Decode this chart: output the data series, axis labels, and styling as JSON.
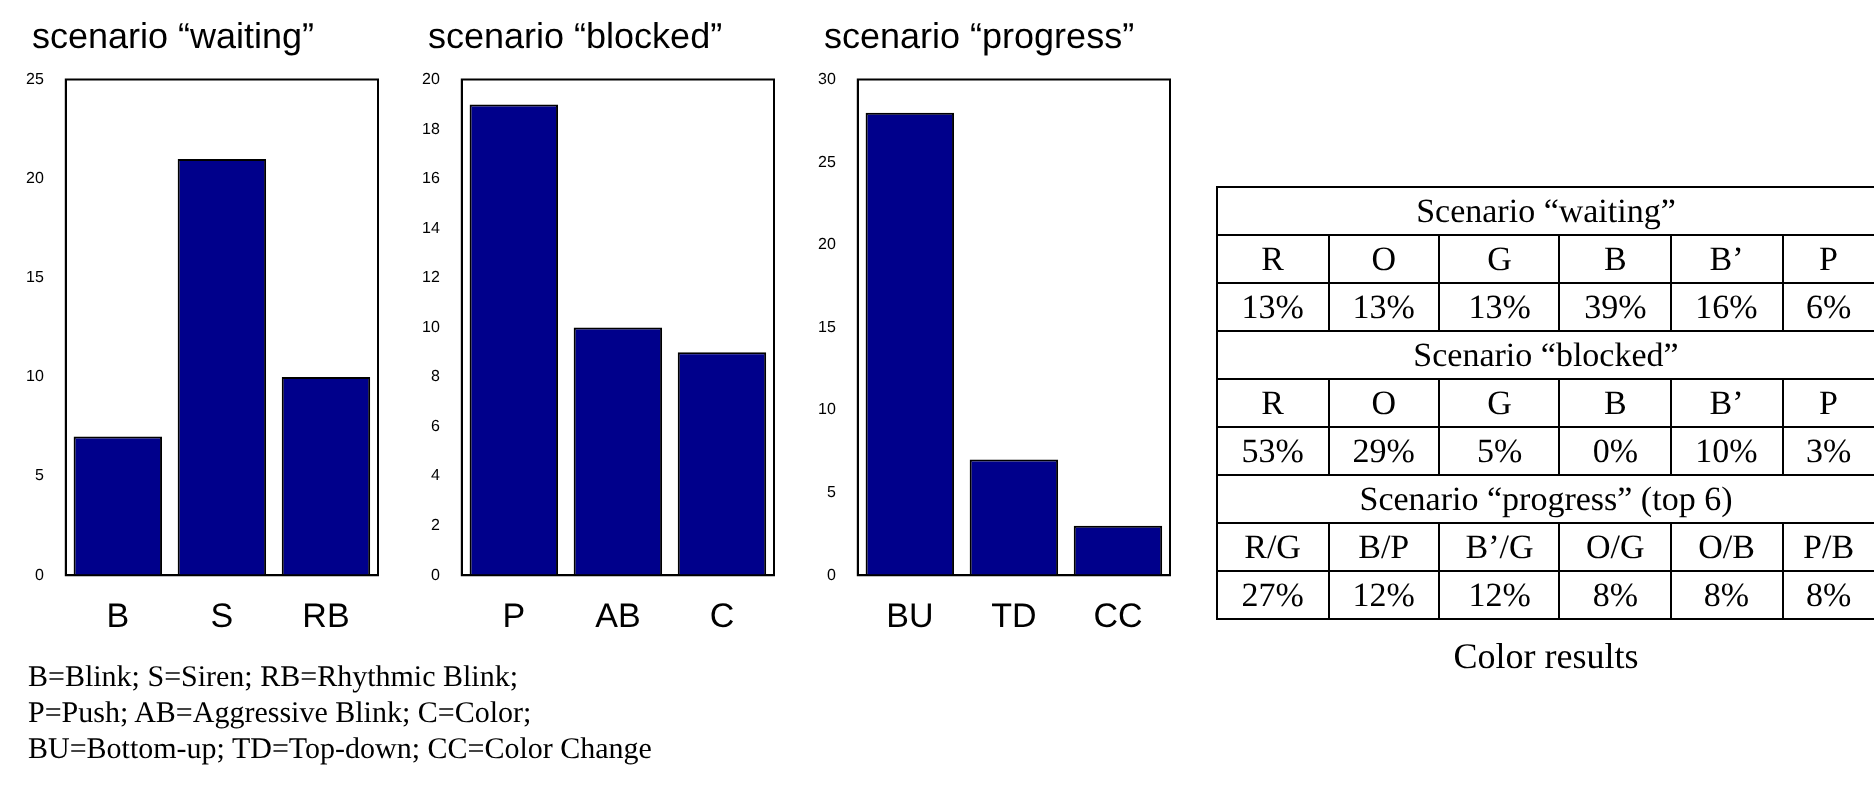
{
  "chart_data": [
    {
      "type": "bar",
      "title": "scenario “waiting”",
      "categories": [
        "B",
        "S",
        "RB"
      ],
      "values": [
        7,
        21,
        10
      ],
      "color": "#00008b",
      "ylim": [
        0,
        25
      ],
      "yticks": [
        0,
        5,
        10,
        15,
        20,
        25
      ],
      "annotations": [
        "B=Blink; S=Siren; RB=Rhythmic Blink;",
        "P=Push; AB=Aggressive Blink; C=Color;",
        "BU=Bottom-up; TD=Top-down; CC=Color Change"
      ]
    },
    {
      "type": "bar",
      "title": "scenario “blocked”",
      "categories": [
        "P",
        "AB",
        "C"
      ],
      "values": [
        19,
        10,
        9
      ],
      "color": "#00008b",
      "ylim": [
        0,
        20
      ],
      "yticks": [
        0,
        2,
        4,
        6,
        8,
        10,
        12,
        14,
        16,
        18,
        20
      ]
    },
    {
      "type": "bar",
      "title": "scenario “progress”",
      "categories": [
        "BU",
        "TD",
        "CC"
      ],
      "values": [
        28,
        7,
        3
      ],
      "color": "#00008b",
      "ylim": [
        0,
        30
      ],
      "yticks": [
        0,
        5,
        10,
        15,
        20,
        25,
        30
      ]
    },
    {
      "type": "other",
      "title": "Color results",
      "annotations": [
        "Scenario “waiting”",
        "R",
        "O",
        "G",
        "B",
        "B’",
        "P",
        "13%",
        "13%",
        "13%",
        "39%",
        "16%",
        "6%",
        "Scenario “blocked”",
        "R",
        "O",
        "G",
        "B",
        "B’",
        "P",
        "53%",
        "29%",
        "5%",
        "0%",
        "10%",
        "3%",
        "Scenario “progress” (top 6)",
        "R/G",
        "B/P",
        "B’/G",
        "O/G",
        "O/B",
        "P/B",
        "27%",
        "12%",
        "12%",
        "8%",
        "8%",
        "8%"
      ]
    }
  ]
}
